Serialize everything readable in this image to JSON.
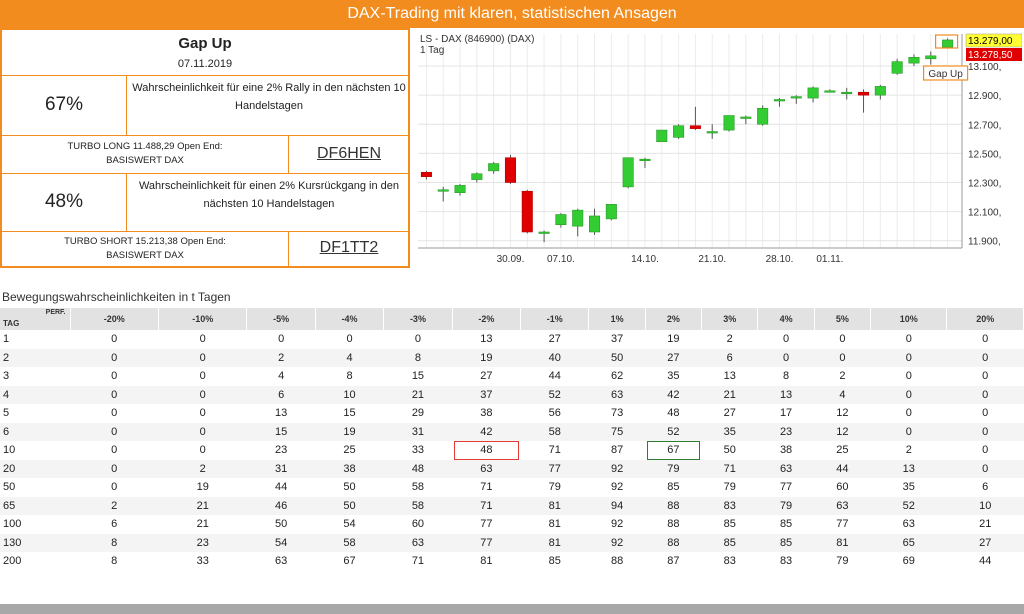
{
  "banner": {
    "title": "DAX-Trading mit klaren, statistischen Ansagen"
  },
  "summary": {
    "title": "Gap Up",
    "date": "07.11.2019",
    "rally": {
      "pct": "67%",
      "text": "Wahrscheinlichkeit für eine 2% Rally in den nächsten 10 Handelstagen"
    },
    "turbo_long": {
      "line1": "TURBO LONG 11.488,29 Open End:",
      "line2": "BASISWERT DAX",
      "wkn": "DF6HEN"
    },
    "drop": {
      "pct": "48%",
      "text": "Wahrscheinlichkeit für einen 2% Kursrückgang in den nächsten 10 Handelstagen"
    },
    "turbo_short": {
      "line1": "TURBO SHORT 15.213,38 Open End:",
      "line2": "BASISWERT DAX",
      "wkn": "DF1TT2"
    }
  },
  "chart_data": {
    "type": "candlestick",
    "title": "LS - DAX (846900) (DAX)",
    "subtitle": "1 Tag",
    "ylim": [
      11850,
      13320
    ],
    "yticks": [
      11900,
      12100,
      12300,
      12500,
      12700,
      12900,
      13100
    ],
    "ytick_labels": [
      "11.900,",
      "12.100,",
      "12.300,",
      "12.500,",
      "12.700,",
      "12.900,",
      "13.100,"
    ],
    "xtick_labels": [
      "30.09.",
      "07.10.",
      "14.10.",
      "21.10.",
      "28.10.",
      "01.11."
    ],
    "xtick_index": [
      5,
      8,
      13,
      17,
      21,
      24
    ],
    "price_high": "13.279,00",
    "price_low": "13.278,50",
    "annotation": "Gap Up",
    "up_color": "#33cc33",
    "down_color": "#e00000",
    "candles": [
      {
        "o": 12370,
        "h": 12380,
        "l": 12320,
        "c": 12340
      },
      {
        "o": 12250,
        "h": 12270,
        "l": 12170,
        "c": 12250
      },
      {
        "o": 12230,
        "h": 12290,
        "l": 12210,
        "c": 12280
      },
      {
        "o": 12320,
        "h": 12370,
        "l": 12300,
        "c": 12360
      },
      {
        "o": 12380,
        "h": 12440,
        "l": 12360,
        "c": 12430
      },
      {
        "o": 12470,
        "h": 12490,
        "l": 12290,
        "c": 12300
      },
      {
        "o": 12240,
        "h": 12250,
        "l": 11950,
        "c": 11960
      },
      {
        "o": 11950,
        "h": 11970,
        "l": 11890,
        "c": 11960
      },
      {
        "o": 12010,
        "h": 12090,
        "l": 11990,
        "c": 12080
      },
      {
        "o": 12000,
        "h": 12120,
        "l": 11930,
        "c": 12110
      },
      {
        "o": 11960,
        "h": 12120,
        "l": 11940,
        "c": 12070
      },
      {
        "o": 12050,
        "h": 12150,
        "l": 12040,
        "c": 12150
      },
      {
        "o": 12270,
        "h": 12470,
        "l": 12260,
        "c": 12470
      },
      {
        "o": 12450,
        "h": 12470,
        "l": 12400,
        "c": 12460
      },
      {
        "o": 12580,
        "h": 12660,
        "l": 12580,
        "c": 12660
      },
      {
        "o": 12610,
        "h": 12700,
        "l": 12600,
        "c": 12690
      },
      {
        "o": 12690,
        "h": 12820,
        "l": 12660,
        "c": 12670
      },
      {
        "o": 12650,
        "h": 12700,
        "l": 12600,
        "c": 12650
      },
      {
        "o": 12660,
        "h": 12760,
        "l": 12650,
        "c": 12760
      },
      {
        "o": 12740,
        "h": 12760,
        "l": 12700,
        "c": 12750
      },
      {
        "o": 12700,
        "h": 12830,
        "l": 12690,
        "c": 12810
      },
      {
        "o": 12860,
        "h": 12880,
        "l": 12820,
        "c": 12870
      },
      {
        "o": 12880,
        "h": 12900,
        "l": 12840,
        "c": 12890
      },
      {
        "o": 12880,
        "h": 12960,
        "l": 12850,
        "c": 12950
      },
      {
        "o": 12930,
        "h": 12940,
        "l": 12920,
        "c": 12930
      },
      {
        "o": 12920,
        "h": 12950,
        "l": 12870,
        "c": 12920
      },
      {
        "o": 12920,
        "h": 12940,
        "l": 12780,
        "c": 12900
      },
      {
        "o": 12900,
        "h": 12970,
        "l": 12870,
        "c": 12960
      },
      {
        "o": 13050,
        "h": 13150,
        "l": 13040,
        "c": 13130
      },
      {
        "o": 13120,
        "h": 13180,
        "l": 13100,
        "c": 13160
      },
      {
        "o": 13150,
        "h": 13200,
        "l": 13110,
        "c": 13170
      },
      {
        "o": 13230,
        "h": 13290,
        "l": 13220,
        "c": 13279
      }
    ]
  },
  "table": {
    "title": "Bewegungswahrscheinlichkeiten in t Tagen",
    "corner_perf": "PERF.",
    "corner_tag": "TAG",
    "headers": [
      "-20%",
      "-10%",
      "-5%",
      "-4%",
      "-3%",
      "-2%",
      "-1%",
      "1%",
      "2%",
      "3%",
      "4%",
      "5%",
      "10%",
      "20%"
    ],
    "rows": [
      {
        "tag": "1",
        "v": [
          "0",
          "0",
          "0",
          "0",
          "0",
          "13",
          "27",
          "37",
          "19",
          "2",
          "0",
          "0",
          "0",
          "0"
        ]
      },
      {
        "tag": "2",
        "v": [
          "0",
          "0",
          "2",
          "4",
          "8",
          "19",
          "40",
          "50",
          "27",
          "6",
          "0",
          "0",
          "0",
          "0"
        ]
      },
      {
        "tag": "3",
        "v": [
          "0",
          "0",
          "4",
          "8",
          "15",
          "27",
          "44",
          "62",
          "35",
          "13",
          "8",
          "2",
          "0",
          "0"
        ]
      },
      {
        "tag": "4",
        "v": [
          "0",
          "0",
          "6",
          "10",
          "21",
          "37",
          "52",
          "63",
          "42",
          "21",
          "13",
          "4",
          "0",
          "0"
        ]
      },
      {
        "tag": "5",
        "v": [
          "0",
          "0",
          "13",
          "15",
          "29",
          "38",
          "56",
          "73",
          "48",
          "27",
          "17",
          "12",
          "0",
          "0"
        ]
      },
      {
        "tag": "6",
        "v": [
          "0",
          "0",
          "15",
          "19",
          "31",
          "42",
          "58",
          "75",
          "52",
          "35",
          "23",
          "12",
          "0",
          "0"
        ]
      },
      {
        "tag": "10",
        "v": [
          "0",
          "0",
          "23",
          "25",
          "33",
          "48",
          "71",
          "87",
          "67",
          "50",
          "38",
          "25",
          "2",
          "0"
        ]
      },
      {
        "tag": "20",
        "v": [
          "0",
          "2",
          "31",
          "38",
          "48",
          "63",
          "77",
          "92",
          "79",
          "71",
          "63",
          "44",
          "13",
          "0"
        ]
      },
      {
        "tag": "50",
        "v": [
          "0",
          "19",
          "44",
          "50",
          "58",
          "71",
          "79",
          "92",
          "85",
          "79",
          "77",
          "60",
          "35",
          "6"
        ]
      },
      {
        "tag": "65",
        "v": [
          "2",
          "21",
          "46",
          "50",
          "58",
          "71",
          "81",
          "94",
          "88",
          "83",
          "79",
          "63",
          "52",
          "10"
        ]
      },
      {
        "tag": "100",
        "v": [
          "6",
          "21",
          "50",
          "54",
          "60",
          "77",
          "81",
          "92",
          "88",
          "85",
          "85",
          "77",
          "63",
          "21"
        ]
      },
      {
        "tag": "130",
        "v": [
          "8",
          "23",
          "54",
          "58",
          "63",
          "77",
          "81",
          "92",
          "88",
          "85",
          "85",
          "81",
          "65",
          "27"
        ]
      },
      {
        "tag": "200",
        "v": [
          "8",
          "33",
          "63",
          "67",
          "71",
          "81",
          "85",
          "88",
          "87",
          "83",
          "83",
          "79",
          "69",
          "44"
        ]
      }
    ],
    "highlight": {
      "row": 6,
      "red_col": 5,
      "green_col": 8
    }
  }
}
